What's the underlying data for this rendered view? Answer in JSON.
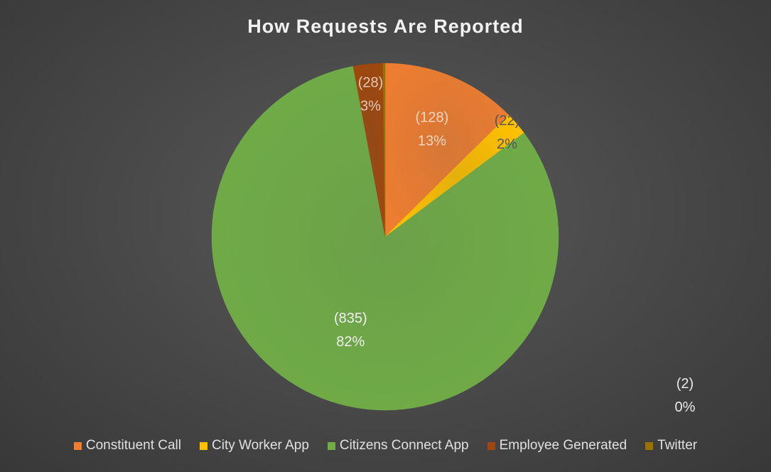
{
  "chart_data": {
    "type": "pie",
    "title": "How Requests Are Reported",
    "categories": [
      "Constituent Call",
      "City Worker App",
      "Citizens Connect App",
      "Employee Generated",
      "Twitter"
    ],
    "values": [
      128,
      22,
      835,
      28,
      2
    ],
    "percent_labels": [
      "13%",
      "2%",
      "82%",
      "3%",
      "0%"
    ],
    "count_labels": [
      "(128)",
      "(22)",
      "(835)",
      "(28)",
      "(2)"
    ],
    "colors": [
      "#ed7d31",
      "#ffc000",
      "#70ad47",
      "#9e480e",
      "#997300"
    ],
    "legend_position": "bottom"
  }
}
